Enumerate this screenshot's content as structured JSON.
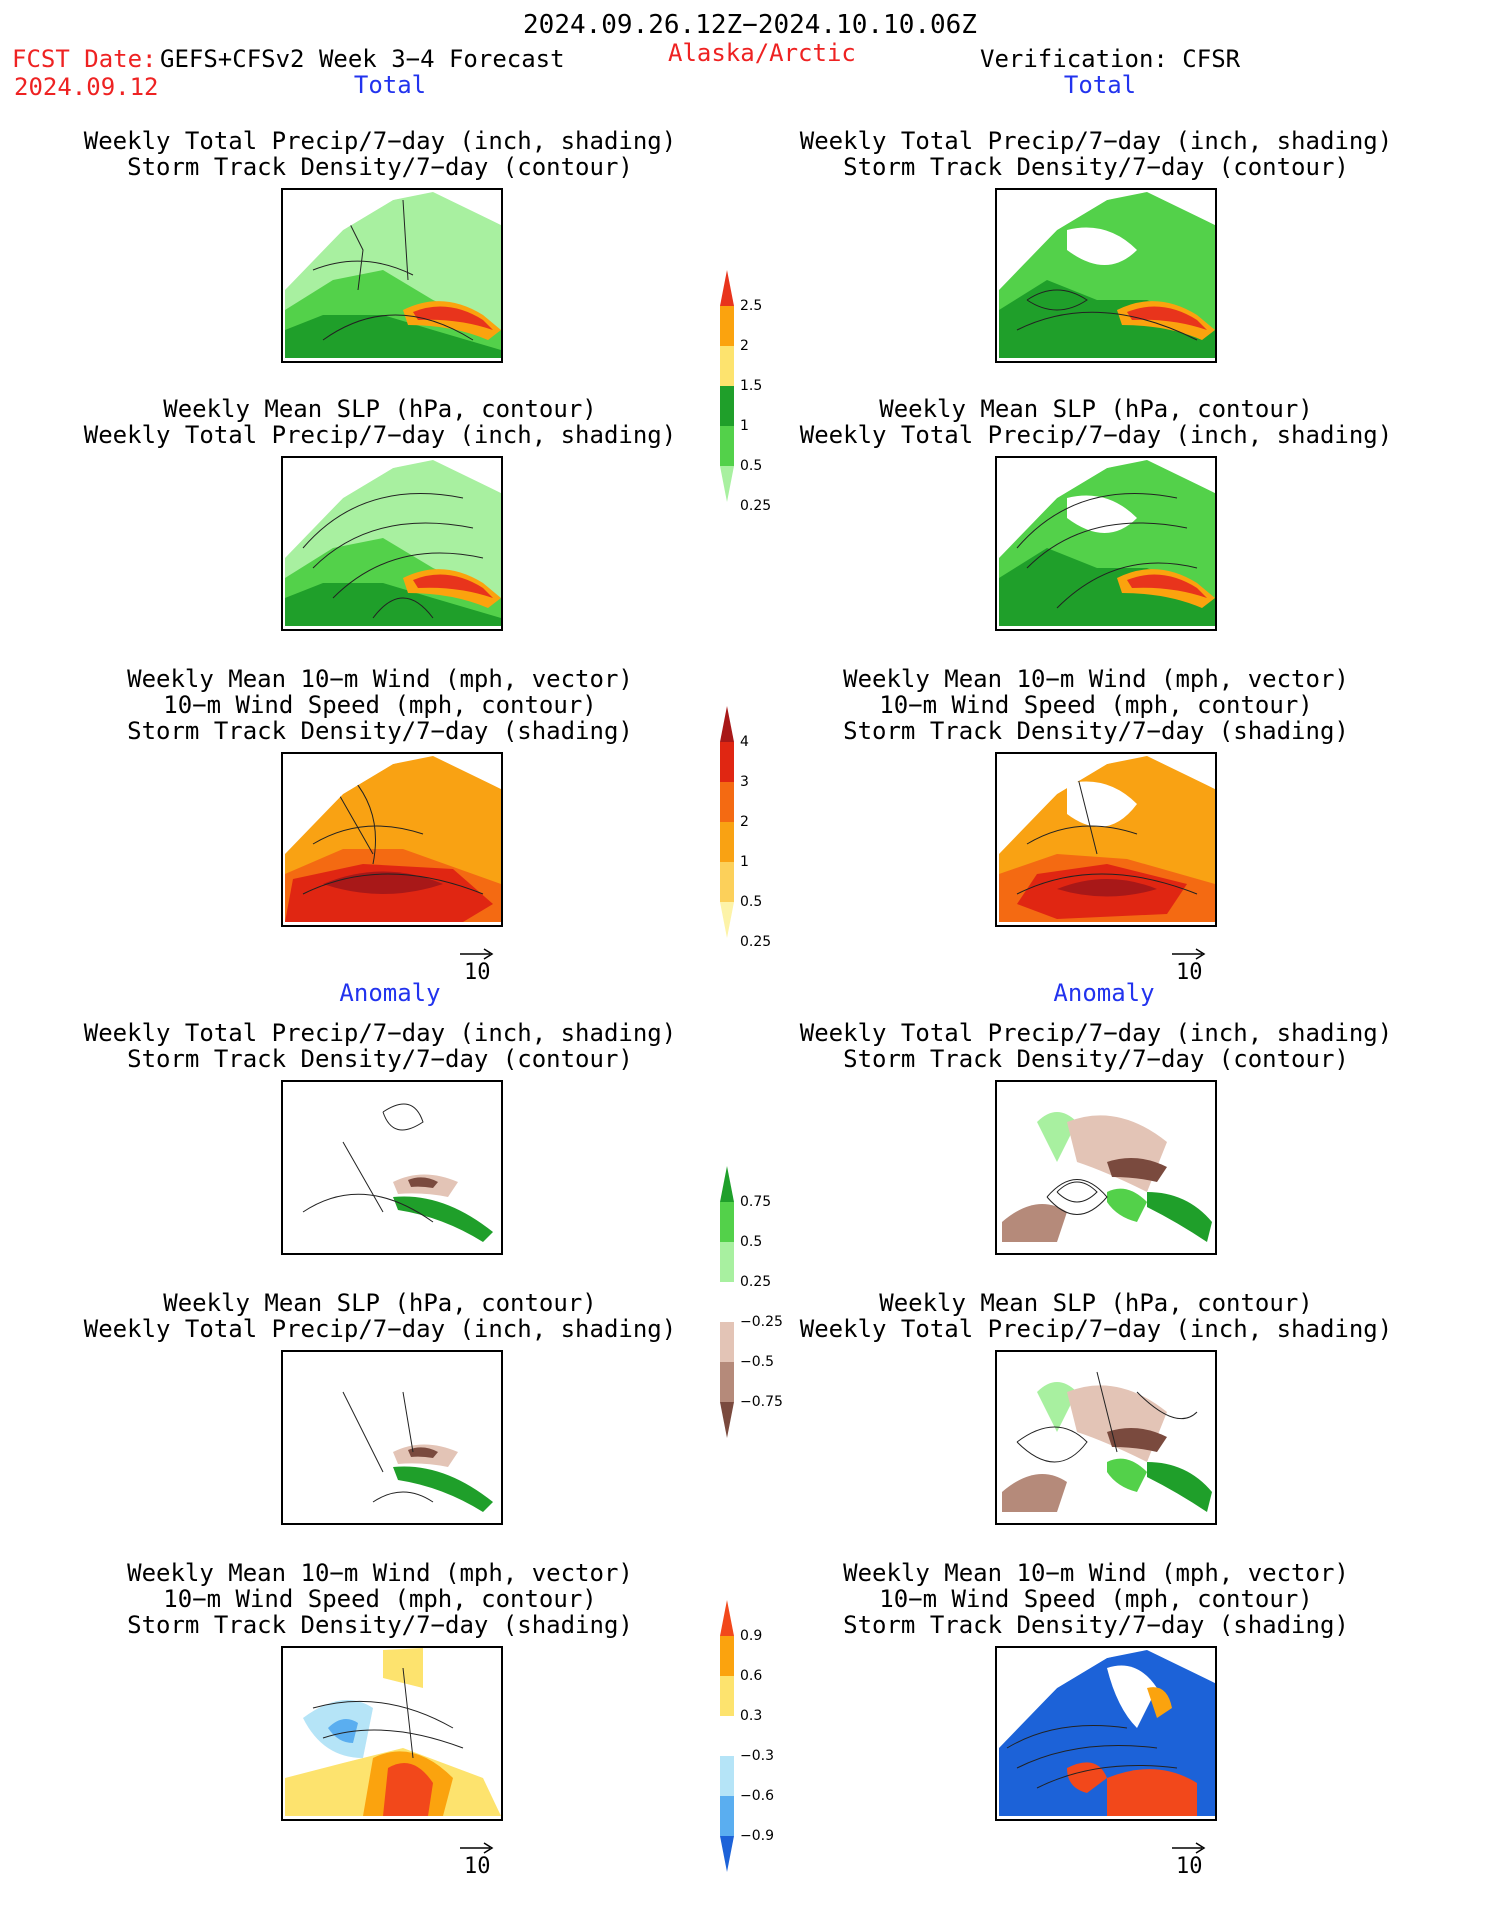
{
  "header": {
    "period": "2024.09.26.12Z−2024.10.10.06Z",
    "fcst_label": "FCST Date:",
    "model": "GEFS+CFSv2 Week 3−4 Forecast",
    "region": "Alaska/Arctic",
    "verification": "Verification: CFSR",
    "fcst_date": "2024.09.12"
  },
  "sections": {
    "total_left": "Total",
    "total_right": "Total",
    "anomaly_left": "Anomaly",
    "anomaly_right": "Anomaly"
  },
  "titles": {
    "precip_storm": [
      "Weekly Total Precip/7−day (inch, shading)",
      "Storm Track Density/7−day (contour)"
    ],
    "slp_precip": [
      "Weekly Mean SLP (hPa, contour)",
      "Weekly Total Precip/7−day (inch, shading)"
    ],
    "wind_storm": [
      "Weekly Mean 10−m Wind (mph, vector)",
      "10−m Wind Speed (mph, contour)",
      "Storm Track Density/7−day (shading)"
    ]
  },
  "colorbars": {
    "precip_total": {
      "ticks": [
        "2.5",
        "2",
        "1.5",
        "1",
        "0.5",
        "0.25"
      ],
      "colors": [
        "#e8341c",
        "#fba30e",
        "#fde36e",
        "#1f9f2a",
        "#53d14a",
        "#a8f0a0"
      ]
    },
    "storm_total": {
      "ticks": [
        "4",
        "3",
        "2",
        "1",
        "0.5",
        "0.25"
      ],
      "colors": [
        "#a81818",
        "#e02612",
        "#f46a12",
        "#f9a213",
        "#fcd05a",
        "#fdf3a8"
      ]
    },
    "precip_anom": {
      "ticks": [
        "0.75",
        "0.5",
        "0.25",
        "−0.25",
        "−0.5",
        "−0.75"
      ],
      "colors": [
        "#1f9f2a",
        "#53d14a",
        "#a8f0a0",
        "#ffffff",
        "#e3c4b6",
        "#b58a7a",
        "#7a4a3e"
      ]
    },
    "storm_anom": {
      "ticks": [
        "0.9",
        "0.6",
        "0.3",
        "−0.3",
        "−0.6",
        "−0.9"
      ],
      "colors": [
        "#f2481b",
        "#fba30e",
        "#fde36e",
        "#ffffff",
        "#b5e4f7",
        "#5aaef0",
        "#1c62d8"
      ]
    }
  },
  "vector_scale": "10"
}
